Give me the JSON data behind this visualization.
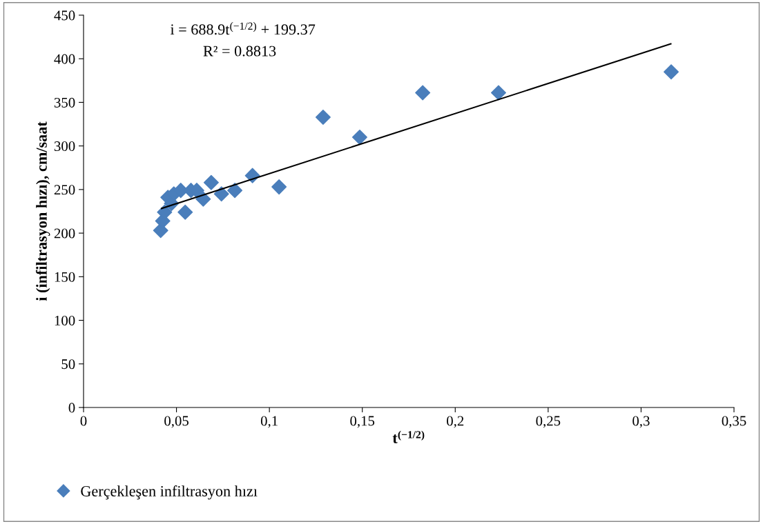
{
  "chart_data": {
    "type": "scatter",
    "xlabel": "t$^{(−1/2)}$",
    "ylabel": "i (infiltrasyon hızı), cm/saat",
    "annotations": [
      "i = 688.9t$^{(−1/2)}$ + 199.37",
      "R² = 0.8813"
    ],
    "series": [
      {
        "name": "Gerçekleşen infiltrasyon hızı",
        "color": "#4a7ebb",
        "marker": "diamond",
        "x": [
          0.0415,
          0.0426,
          0.0436,
          0.0454,
          0.0473,
          0.0486,
          0.0523,
          0.0547,
          0.0578,
          0.0609,
          0.0644,
          0.0687,
          0.0742,
          0.0814,
          0.0909,
          0.1052,
          0.1289,
          0.1486,
          0.1825,
          0.2233,
          0.3162
        ],
        "values": [
          203,
          214,
          224,
          241,
          234,
          245,
          249,
          224,
          249,
          249,
          239,
          258,
          245,
          249,
          266,
          253,
          333,
          310,
          361,
          361,
          385
        ]
      },
      {
        "type": "line",
        "color": "#000000",
        "marker": "none",
        "x": [
          0.042,
          0.316
        ],
        "values": [
          228.3,
          417.1
        ]
      }
    ],
    "xlim": [
      0,
      0.35
    ],
    "ylim": [
      0,
      450
    ],
    "xticks": [
      0,
      {
        "value": 0.05,
        "label": "0,05"
      },
      {
        "value": 0.1,
        "label": "0,1"
      },
      {
        "value": 0.15,
        "label": "0,15"
      },
      {
        "value": 0.2,
        "label": "0,2"
      },
      {
        "value": 0.25,
        "label": "0,25"
      },
      {
        "value": 0.3,
        "label": "0,3"
      },
      {
        "value": 0.35,
        "label": "0,35"
      }
    ],
    "yticks": [
      0,
      50,
      100,
      150,
      200,
      250,
      300,
      350,
      400,
      450
    ],
    "grid": false,
    "legend": "bottom left"
  }
}
